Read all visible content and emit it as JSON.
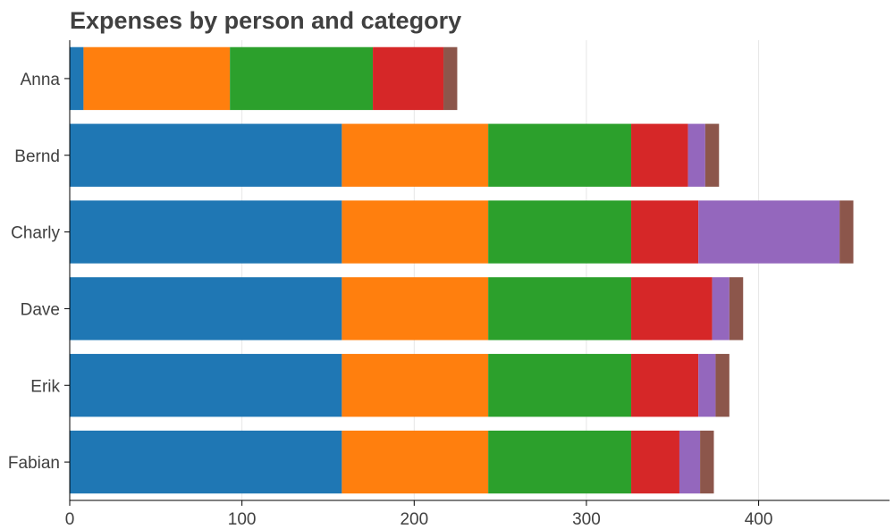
{
  "chart_data": {
    "type": "bar",
    "orientation": "horizontal",
    "stacked": true,
    "title": "Expenses by person and category",
    "xlabel": "",
    "ylabel": "",
    "xlim": [
      0,
      476
    ],
    "xticks": [
      0,
      100,
      200,
      300,
      400
    ],
    "grid": "vertical",
    "legend": "none",
    "categories": [
      "Anna",
      "Bernd",
      "Charly",
      "Dave",
      "Erik",
      "Fabian"
    ],
    "series": [
      {
        "color": "#1f77b4",
        "values": [
          8,
          158,
          158,
          158,
          158,
          158
        ]
      },
      {
        "color": "#ff7f0e",
        "values": [
          85,
          85,
          85,
          85,
          85,
          85
        ]
      },
      {
        "color": "#2ca02c",
        "values": [
          83,
          83,
          83,
          83,
          83,
          83
        ]
      },
      {
        "color": "#d62728",
        "values": [
          41,
          33,
          39,
          47,
          39,
          28
        ]
      },
      {
        "color": "#9467bd",
        "values": [
          0,
          10,
          82,
          10,
          10,
          12
        ]
      },
      {
        "color": "#8c564b",
        "values": [
          8,
          8,
          8,
          8,
          8,
          8
        ]
      }
    ]
  }
}
